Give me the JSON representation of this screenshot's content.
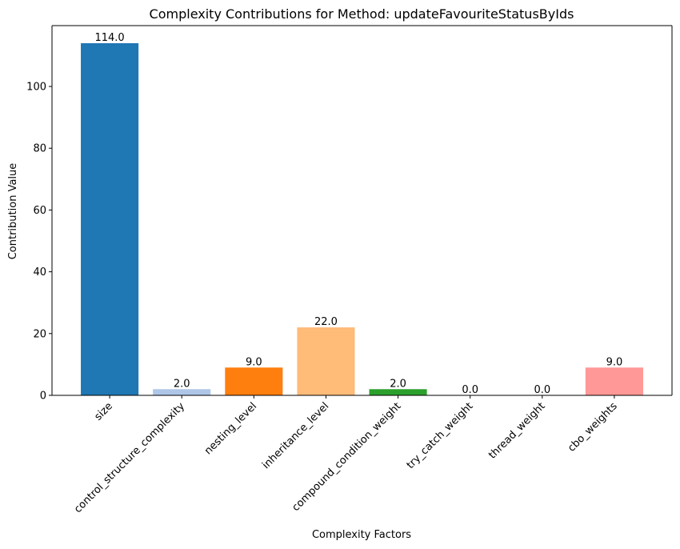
{
  "chart_data": {
    "type": "bar",
    "title": "Complexity Contributions for Method: updateFavouriteStatusByIds",
    "xlabel": "Complexity Factors",
    "ylabel": "Contribution Value",
    "categories": [
      "size",
      "control_structure_complexity",
      "nesting_level",
      "inheritance_level",
      "compound_condition_weight",
      "try_catch_weight",
      "thread_weight",
      "cbo_weights"
    ],
    "values": [
      114.0,
      2.0,
      9.0,
      22.0,
      2.0,
      0.0,
      0.0,
      9.0
    ],
    "data_labels": [
      "114.0",
      "2.0",
      "9.0",
      "22.0",
      "2.0",
      "0.0",
      "0.0",
      "9.0"
    ],
    "colors": [
      "#1f77b4",
      "#aec7e8",
      "#ff7f0e",
      "#ffbb78",
      "#2ca02c",
      "#98df8a",
      "#d62728",
      "#ff9896"
    ],
    "yticks": [
      0,
      20,
      40,
      60,
      80,
      100
    ],
    "ylim": [
      0,
      119.7
    ],
    "grid": false
  }
}
